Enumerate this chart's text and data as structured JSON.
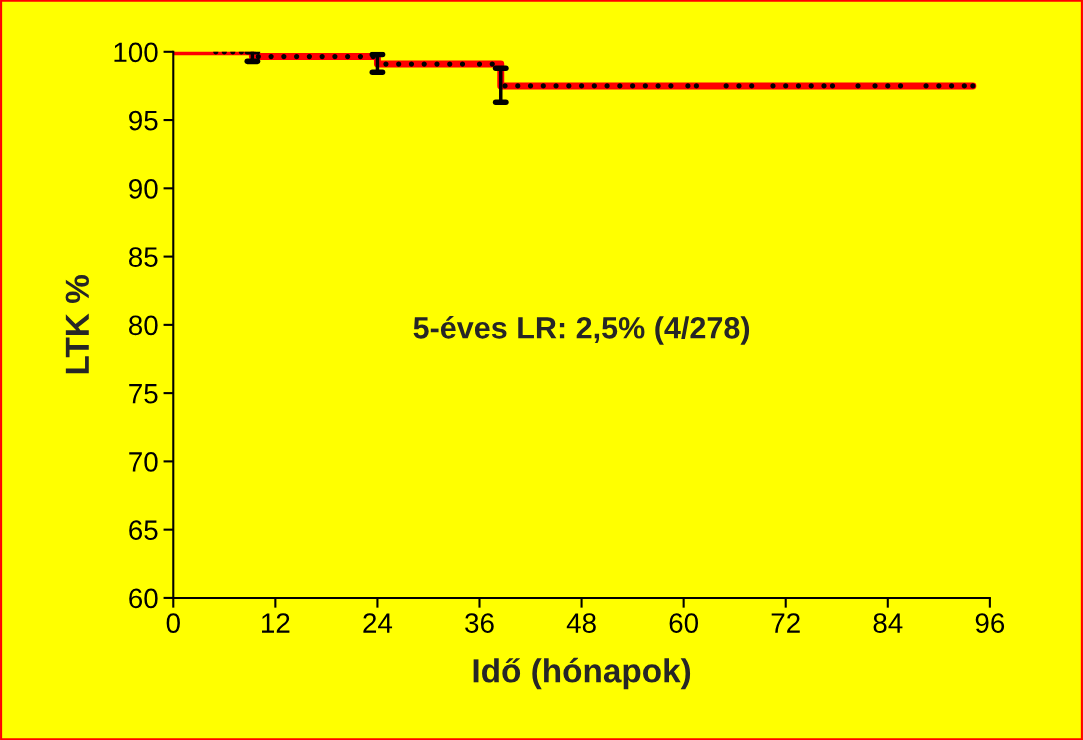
{
  "chart_data": {
    "type": "step",
    "xlabel": "Idő (hónapok)",
    "ylabel": "LTK %",
    "annotations": [
      "5-éves LR: 2,5% (4/278)"
    ],
    "series": [
      {
        "color": "#ff0000",
        "x": [
          0,
          9.3,
          24,
          38.5,
          94
        ],
        "values": [
          100,
          99.65,
          99.1,
          97.5,
          97.5
        ],
        "errors": [
          null,
          [
            99.3,
            100
          ],
          [
            98.5,
            99.8
          ],
          [
            96.3,
            98.8
          ],
          null
        ]
      },
      {
        "type": "scatter",
        "color": "#000000",
        "marker": "circle",
        "x": [
          5,
          6,
          7,
          8,
          10,
          11.5,
          13,
          14.5,
          16,
          17.5,
          19,
          20.5,
          22,
          23.5,
          25,
          26.5,
          28,
          29.5,
          31,
          32.5,
          34,
          36,
          37.5,
          39,
          40.5,
          42,
          43.5,
          45,
          46.5,
          48,
          49.5,
          51,
          52.5,
          54,
          55.5,
          57,
          58.5,
          60.5,
          61.5,
          65,
          66.5,
          68,
          70.5,
          72,
          73.5,
          75,
          76.5,
          77.5,
          80.5,
          82.5,
          84,
          85.5,
          88.5,
          90,
          91.5,
          93,
          94
        ],
        "values": [
          100,
          100,
          100,
          100,
          99.65,
          99.65,
          99.65,
          99.65,
          99.65,
          99.65,
          99.65,
          99.65,
          99.65,
          99.65,
          99.1,
          99.1,
          99.1,
          99.1,
          99.1,
          99.1,
          99.1,
          99.1,
          99.1,
          97.5,
          97.5,
          97.5,
          97.5,
          97.5,
          97.5,
          97.5,
          97.5,
          97.5,
          97.5,
          97.5,
          97.5,
          97.5,
          97.5,
          97.5,
          97.5,
          97.5,
          97.5,
          97.5,
          97.5,
          97.5,
          97.5,
          97.5,
          97.5,
          97.5,
          97.5,
          97.5,
          97.5,
          97.5,
          97.5,
          97.5,
          97.5,
          97.5,
          97.5
        ]
      }
    ],
    "xlim": [
      0,
      96
    ],
    "xticks": [
      0,
      12,
      24,
      36,
      48,
      60,
      72,
      84,
      96
    ],
    "ylim": [
      60,
      100
    ],
    "yticks": [
      60,
      65,
      70,
      75,
      80,
      85,
      90,
      95,
      100
    ],
    "grid": false,
    "legend": false
  }
}
